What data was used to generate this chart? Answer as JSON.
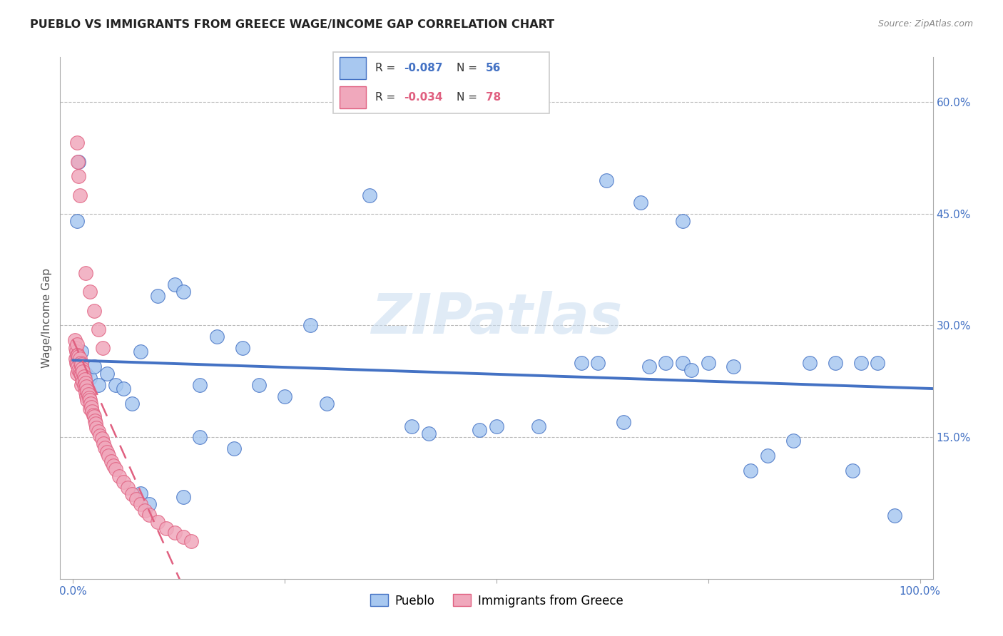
{
  "title": "PUEBLO VS IMMIGRANTS FROM GREECE WAGE/INCOME GAP CORRELATION CHART",
  "source": "Source: ZipAtlas.com",
  "ylabel": "Wage/Income Gap",
  "legend_label1": "Pueblo",
  "legend_label2": "Immigrants from Greece",
  "r1": "-0.087",
  "n1": "56",
  "r2": "-0.034",
  "n2": "78",
  "color_blue": "#A8C8F0",
  "color_pink": "#F0A8BC",
  "color_blue_dark": "#4472C4",
  "color_pink_dark": "#E06080",
  "color_grid": "#CCCCCC",
  "watermark": "ZIPatlas",
  "blue_points_x": [
    0.01,
    0.01,
    0.015,
    0.02,
    0.025,
    0.03,
    0.04,
    0.05,
    0.06,
    0.07,
    0.08,
    0.1,
    0.12,
    0.13,
    0.15,
    0.17,
    0.2,
    0.22,
    0.25,
    0.28,
    0.3,
    0.35,
    0.4,
    0.5,
    0.6,
    0.62,
    0.65,
    0.68,
    0.7,
    0.72,
    0.73,
    0.75,
    0.78,
    0.8,
    0.82,
    0.85,
    0.87,
    0.9,
    0.92,
    0.93,
    0.95,
    0.97,
    0.63,
    0.67,
    0.72,
    0.48,
    0.55,
    0.005,
    0.005,
    0.007,
    0.42,
    0.15,
    0.19,
    0.13,
    0.08,
    0.09
  ],
  "blue_points_y": [
    0.265,
    0.24,
    0.235,
    0.23,
    0.245,
    0.22,
    0.235,
    0.22,
    0.215,
    0.195,
    0.265,
    0.34,
    0.355,
    0.345,
    0.22,
    0.285,
    0.27,
    0.22,
    0.205,
    0.3,
    0.195,
    0.475,
    0.165,
    0.165,
    0.25,
    0.25,
    0.17,
    0.245,
    0.25,
    0.25,
    0.24,
    0.25,
    0.245,
    0.105,
    0.125,
    0.145,
    0.25,
    0.25,
    0.105,
    0.25,
    0.25,
    0.045,
    0.495,
    0.465,
    0.44,
    0.16,
    0.165,
    0.25,
    0.44,
    0.52,
    0.155,
    0.15,
    0.135,
    0.07,
    0.075,
    0.06
  ],
  "pink_points_x": [
    0.002,
    0.003,
    0.003,
    0.004,
    0.004,
    0.005,
    0.005,
    0.005,
    0.005,
    0.006,
    0.006,
    0.007,
    0.007,
    0.008,
    0.008,
    0.009,
    0.009,
    0.01,
    0.01,
    0.01,
    0.011,
    0.011,
    0.012,
    0.012,
    0.013,
    0.013,
    0.014,
    0.014,
    0.015,
    0.015,
    0.016,
    0.016,
    0.017,
    0.017,
    0.018,
    0.019,
    0.02,
    0.02,
    0.021,
    0.022,
    0.023,
    0.024,
    0.025,
    0.026,
    0.027,
    0.028,
    0.03,
    0.032,
    0.034,
    0.036,
    0.038,
    0.04,
    0.042,
    0.045,
    0.048,
    0.05,
    0.055,
    0.06,
    0.065,
    0.07,
    0.075,
    0.08,
    0.085,
    0.09,
    0.1,
    0.11,
    0.12,
    0.13,
    0.14,
    0.005,
    0.006,
    0.007,
    0.008,
    0.015,
    0.02,
    0.025,
    0.03,
    0.035
  ],
  "pink_points_y": [
    0.28,
    0.27,
    0.255,
    0.265,
    0.25,
    0.275,
    0.26,
    0.248,
    0.235,
    0.26,
    0.245,
    0.258,
    0.24,
    0.255,
    0.238,
    0.25,
    0.235,
    0.248,
    0.233,
    0.22,
    0.242,
    0.228,
    0.238,
    0.225,
    0.232,
    0.22,
    0.228,
    0.215,
    0.223,
    0.21,
    0.218,
    0.205,
    0.212,
    0.2,
    0.208,
    0.203,
    0.2,
    0.188,
    0.195,
    0.19,
    0.185,
    0.18,
    0.178,
    0.172,
    0.168,
    0.163,
    0.158,
    0.152,
    0.148,
    0.142,
    0.136,
    0.13,
    0.125,
    0.118,
    0.112,
    0.107,
    0.098,
    0.09,
    0.082,
    0.074,
    0.067,
    0.06,
    0.052,
    0.046,
    0.036,
    0.028,
    0.022,
    0.016,
    0.01,
    0.545,
    0.52,
    0.5,
    0.475,
    0.37,
    0.345,
    0.32,
    0.295,
    0.27
  ]
}
